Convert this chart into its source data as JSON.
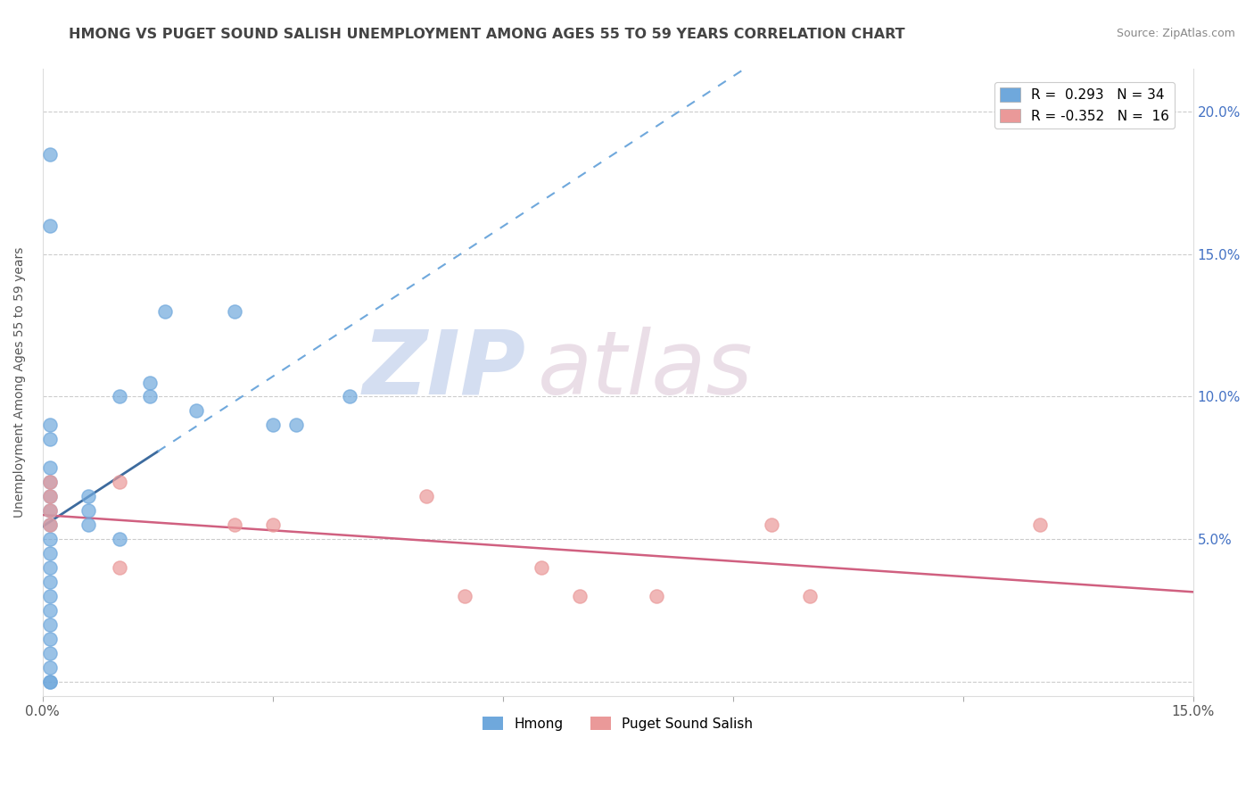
{
  "title": "HMONG VS PUGET SOUND SALISH UNEMPLOYMENT AMONG AGES 55 TO 59 YEARS CORRELATION CHART",
  "source": "Source: ZipAtlas.com",
  "ylabel": "Unemployment Among Ages 55 to 59 years",
  "xlim": [
    0.0,
    0.15
  ],
  "ylim": [
    -0.005,
    0.215
  ],
  "xticks": [
    0.0,
    0.03,
    0.06,
    0.09,
    0.12,
    0.15
  ],
  "xtick_labels": [
    "0.0%",
    "",
    "",
    "",
    "",
    "15.0%"
  ],
  "yticks": [
    0.0,
    0.05,
    0.1,
    0.15,
    0.2
  ],
  "ytick_labels_left": [
    "",
    "",
    "",
    "",
    ""
  ],
  "ytick_labels_right": [
    "",
    "5.0%",
    "10.0%",
    "15.0%",
    "20.0%"
  ],
  "hmong_color": "#6fa8dc",
  "salish_color": "#ea9999",
  "hmong_trend_color": "#3d6b9e",
  "salish_trend_color": "#d06080",
  "hmong_R": 0.293,
  "hmong_N": 34,
  "salish_R": -0.352,
  "salish_N": 16,
  "watermark_zip": "ZIP",
  "watermark_atlas": "atlas",
  "watermark_color": "#d0ddf0",
  "watermark_color2": "#d8c8d8",
  "hmong_x": [
    0.001,
    0.001,
    0.001,
    0.001,
    0.001,
    0.001,
    0.001,
    0.001,
    0.001,
    0.001,
    0.001,
    0.001,
    0.001,
    0.001,
    0.001,
    0.001,
    0.001,
    0.001,
    0.001,
    0.006,
    0.006,
    0.006,
    0.01,
    0.01,
    0.014,
    0.014,
    0.016,
    0.02,
    0.025,
    0.03,
    0.033,
    0.04,
    0.001,
    0.001
  ],
  "hmong_y": [
    0.0,
    0.0,
    0.005,
    0.01,
    0.015,
    0.02,
    0.025,
    0.03,
    0.035,
    0.04,
    0.045,
    0.05,
    0.055,
    0.06,
    0.065,
    0.07,
    0.075,
    0.085,
    0.09,
    0.055,
    0.06,
    0.065,
    0.05,
    0.1,
    0.1,
    0.105,
    0.13,
    0.095,
    0.13,
    0.09,
    0.09,
    0.1,
    0.16,
    0.185
  ],
  "salish_x": [
    0.001,
    0.001,
    0.001,
    0.001,
    0.01,
    0.01,
    0.025,
    0.03,
    0.05,
    0.055,
    0.065,
    0.07,
    0.08,
    0.095,
    0.1,
    0.13
  ],
  "salish_y": [
    0.055,
    0.06,
    0.065,
    0.07,
    0.04,
    0.07,
    0.055,
    0.055,
    0.065,
    0.03,
    0.04,
    0.03,
    0.03,
    0.055,
    0.03,
    0.055
  ]
}
